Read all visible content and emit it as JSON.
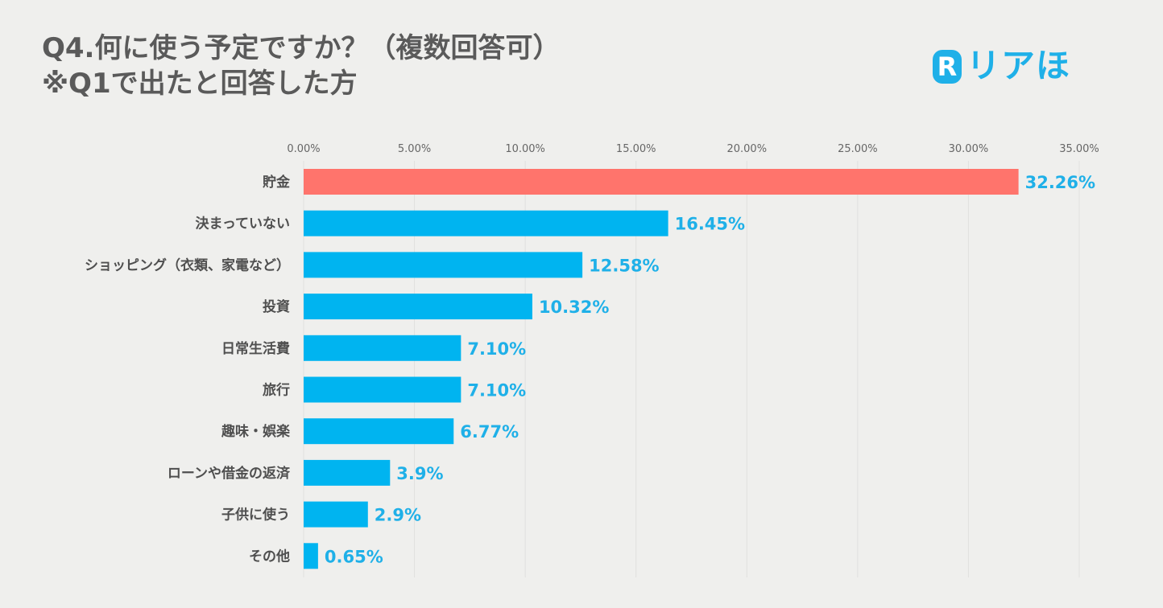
{
  "header": {
    "title_line1": "Q4.何に使う予定ですか？（複数回答可）",
    "title_line2": "※Q1で出たと回答した方",
    "logo_letter": "R",
    "logo_text": "リアほ"
  },
  "colors": {
    "background": "#efefed",
    "bar_default": "#00b4f0",
    "bar_highlight": "#ff746c",
    "value_label": "#1fb0e8",
    "grid": "#e0e0de",
    "logo": "#1fb0e8"
  },
  "chart_data": {
    "type": "bar",
    "orientation": "horizontal",
    "title": "Q4.何に使う予定ですか？（複数回答可） ※Q1で出たと回答した方",
    "xlabel": "",
    "ylabel": "",
    "xlim": [
      0,
      35
    ],
    "x_ticks": [
      "0.00%",
      "5.00%",
      "10.00%",
      "15.00%",
      "20.00%",
      "25.00%",
      "30.00%",
      "35.00%"
    ],
    "x_tick_values": [
      0,
      5,
      10,
      15,
      20,
      25,
      30,
      35
    ],
    "grid": true,
    "legend": "none",
    "categories": [
      "貯金",
      "決まっていない",
      "ショッピング（衣類、家電など）",
      "投資",
      "日常生活費",
      "旅行",
      "趣味・娯楽",
      "ローンや借金の返済",
      "子供に使う",
      "その他"
    ],
    "values": [
      32.26,
      16.45,
      12.58,
      10.32,
      7.1,
      7.1,
      6.77,
      3.9,
      2.9,
      0.65
    ],
    "value_labels": [
      "32.26%",
      "16.45%",
      "12.58%",
      "10.32%",
      "7.10%",
      "7.10%",
      "6.77%",
      "3.9%",
      "2.9%",
      "0.65%"
    ],
    "highlight_index": 0
  }
}
